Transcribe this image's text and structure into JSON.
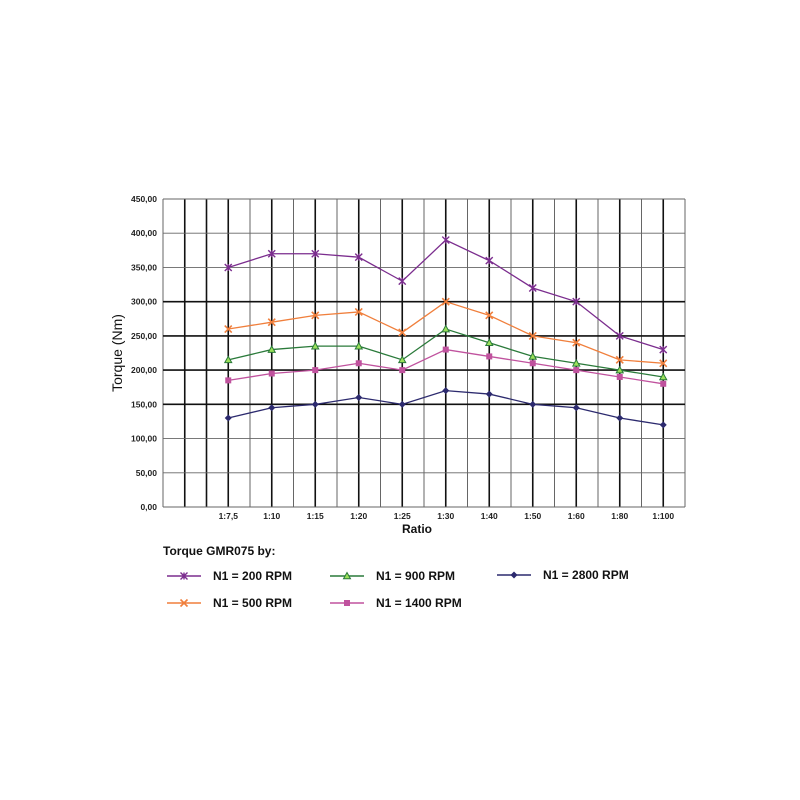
{
  "chart_data": {
    "type": "line",
    "title": "",
    "xlabel": "Ratio",
    "ylabel": "Torque (Nm)",
    "ylim": [
      0,
      450
    ],
    "yticks": [
      "0,00",
      "50,00",
      "100,00",
      "150,00",
      "200,00",
      "250,00",
      "300,00",
      "350,00",
      "400,00",
      "450,00"
    ],
    "grid": true,
    "legend_position": "bottom",
    "legend_title": "Torque GMR075 by:",
    "categories": [
      "1:7,5",
      "1:10",
      "1:15",
      "1:20",
      "1:25",
      "1:30",
      "1:40",
      "1:50",
      "1:60",
      "1:80",
      "1:100"
    ],
    "series": [
      {
        "name": "N1 = 200 RPM",
        "color": "#7b2d8e",
        "marker": "asterisk",
        "values": [
          350,
          370,
          370,
          365,
          330,
          390,
          360,
          320,
          300,
          250,
          230
        ]
      },
      {
        "name": "N1 = 500 RPM",
        "color": "#f07f3c",
        "marker": "x",
        "values": [
          260,
          270,
          280,
          285,
          255,
          300,
          280,
          250,
          240,
          215,
          210
        ]
      },
      {
        "name": "N1 = 900 RPM",
        "color": "#2a7a3a",
        "marker": "triangle",
        "values": [
          215,
          230,
          235,
          235,
          215,
          260,
          240,
          220,
          210,
          200,
          190
        ]
      },
      {
        "name": "N1 = 1400 RPM",
        "color": "#c0529e",
        "marker": "square",
        "values": [
          185,
          195,
          200,
          210,
          200,
          230,
          220,
          210,
          200,
          190,
          180
        ]
      },
      {
        "name": "N1 = 2800 RPM",
        "color": "#2c2a6e",
        "marker": "diamond",
        "values": [
          130,
          145,
          150,
          160,
          150,
          170,
          165,
          150,
          145,
          130,
          120
        ]
      }
    ]
  }
}
